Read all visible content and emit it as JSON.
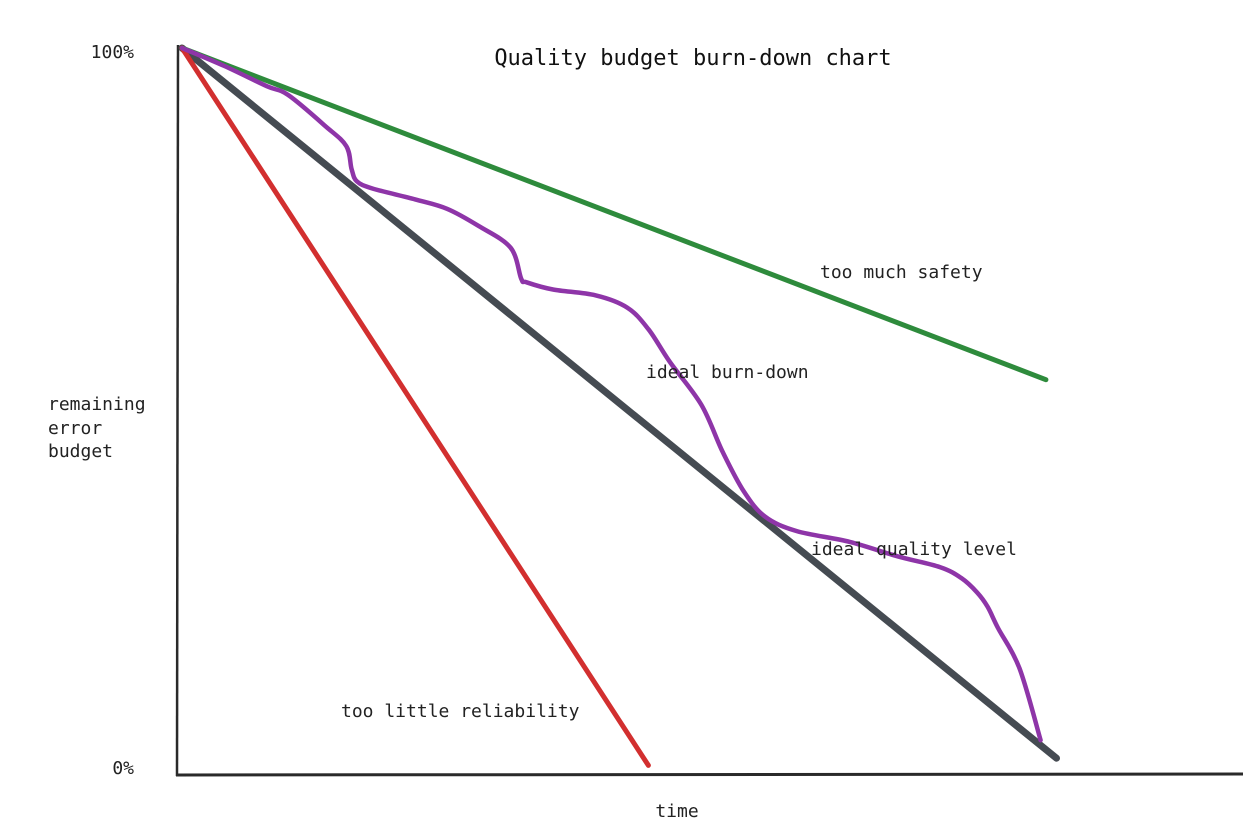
{
  "chart_data": {
    "type": "line",
    "title": "Quality budget burn-down chart",
    "xlabel": "time",
    "ylabel_lines": [
      "remaining",
      "error",
      "budget"
    ],
    "y_tick_top": "100%",
    "y_tick_bottom": "0%",
    "ylim": [
      0,
      100
    ],
    "xlim": [
      0,
      100
    ],
    "grid": false,
    "legend": "none",
    "series": [
      {
        "name": "too much safety",
        "color": "#2e8b3c",
        "points": [
          [
            0,
            100
          ],
          [
            81.5,
            54
          ]
        ]
      },
      {
        "name": "too little reliability",
        "color": "#d22f2f",
        "points": [
          [
            0,
            100
          ],
          [
            44,
            0.5
          ]
        ]
      },
      {
        "name": "ideal quality level",
        "color": "#454b52",
        "points": [
          [
            0,
            100
          ],
          [
            82.5,
            1.5
          ]
        ]
      },
      {
        "name": "ideal burn-down",
        "color": "#8e35a8",
        "points": [
          [
            0,
            100
          ],
          [
            4,
            97.5
          ],
          [
            8,
            94.7
          ],
          [
            10,
            93.5
          ],
          [
            13.5,
            89.2
          ],
          [
            15.5,
            86.4
          ],
          [
            16,
            83.2
          ],
          [
            16.5,
            81.5
          ],
          [
            18,
            80.5
          ],
          [
            22,
            79
          ],
          [
            25,
            77.7
          ],
          [
            28,
            75.3
          ],
          [
            31,
            72.3
          ],
          [
            32,
            68
          ],
          [
            32.5,
            67.5
          ],
          [
            35,
            66.5
          ],
          [
            39,
            65.7
          ],
          [
            42,
            64
          ],
          [
            44,
            61
          ],
          [
            46,
            56.5
          ],
          [
            49,
            50.5
          ],
          [
            51,
            44
          ],
          [
            53,
            38.5
          ],
          [
            55,
            35
          ],
          [
            58,
            33
          ],
          [
            63,
            31.5
          ],
          [
            67.5,
            29.5
          ],
          [
            71.5,
            28
          ],
          [
            73.5,
            26.5
          ],
          [
            75,
            24.5
          ],
          [
            76,
            22.5
          ],
          [
            77,
            19.5
          ],
          [
            79,
            14
          ],
          [
            81,
            4
          ]
        ]
      }
    ]
  }
}
